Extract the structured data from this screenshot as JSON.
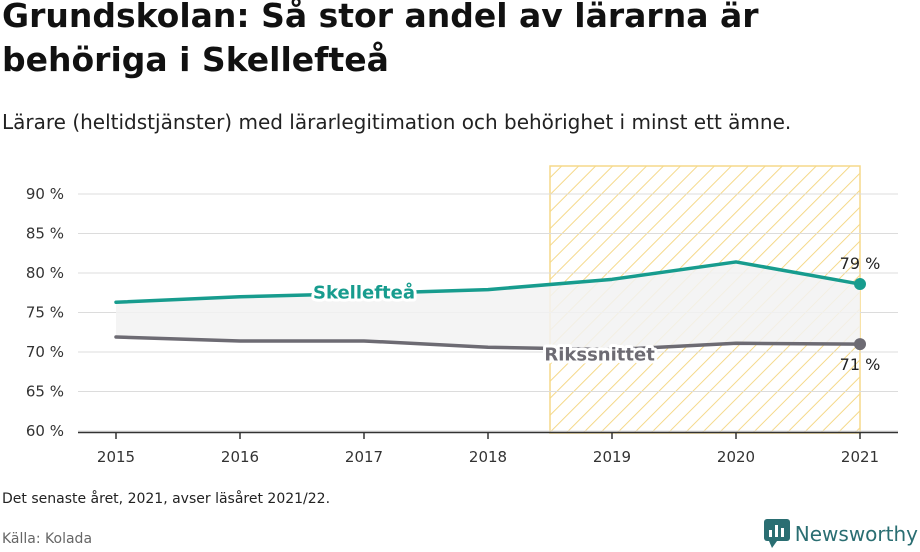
{
  "title": "Grundskolan: Så stor andel av lärarna är behöriga i Skellefteå",
  "subtitle": "Lärare (heltidstjänster) med lärarlegitimation och behörighet i minst ett ämne.",
  "note": "Det senaste året, 2021, avser läsåret 2021/22.",
  "source": "Källa: Kolada",
  "brand": "Newsworthy",
  "colors": {
    "skelleftea": "#179c8e",
    "riks": "#6d6b73",
    "highlight": "#f5d98a",
    "fill": "#f2f2f2"
  },
  "chart_data": {
    "type": "line",
    "x": [
      2015,
      2016,
      2017,
      2018,
      2019,
      2020,
      2021
    ],
    "x_tick_labels": [
      "2015",
      "2016",
      "2017",
      "2018",
      "2019",
      "2020",
      "2021"
    ],
    "ylim": [
      60,
      90
    ],
    "y_ticks": [
      60,
      65,
      70,
      75,
      80,
      85,
      90
    ],
    "y_tick_labels": [
      "60 %",
      "65 %",
      "70 %",
      "75 %",
      "80 %",
      "85 %",
      "90 %"
    ],
    "grid": "horizontal",
    "highlight_range": [
      2018.5,
      2021
    ],
    "series": [
      {
        "name": "Skellefteå",
        "values": [
          76.3,
          77.0,
          77.4,
          77.9,
          79.2,
          81.4,
          78.6
        ],
        "end_label": "79 %"
      },
      {
        "name": "Rikssnittet",
        "values": [
          71.9,
          71.4,
          71.4,
          70.6,
          70.3,
          71.1,
          71.0
        ],
        "end_label": "71 %"
      }
    ]
  }
}
